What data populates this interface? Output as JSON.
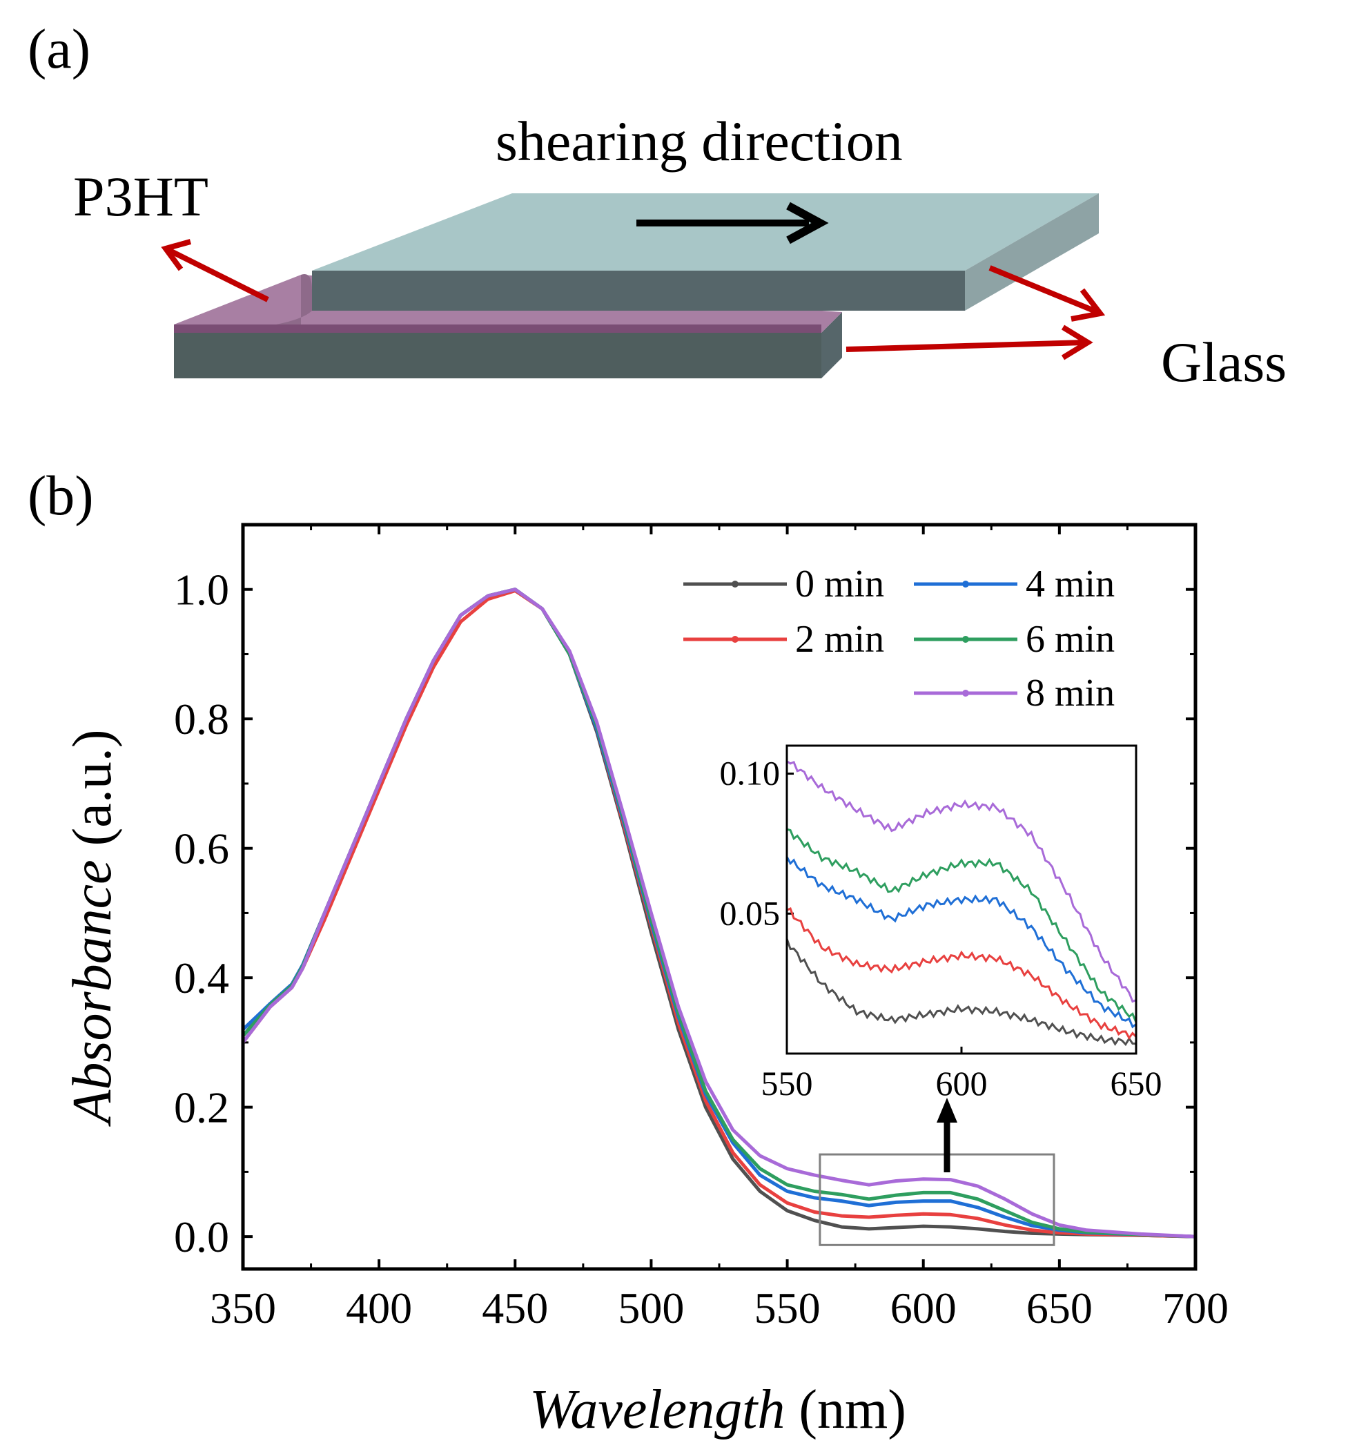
{
  "panel_a": {
    "label": "(a)",
    "direction_label": "shearing direction",
    "film_label": "P3HT",
    "substrate_label": "Glass",
    "colors": {
      "glass_top": "#a8c6c7",
      "glass_side": "#4f5e5e",
      "film": "#a87fa3",
      "arrow_red": "#c00000"
    }
  },
  "panel_b": {
    "label": "(b)"
  },
  "chart_data": {
    "type": "line",
    "xlabel_italic": "Wavelength",
    "xlabel_unit": " (nm)",
    "ylabel_italic": "Absorbance",
    "ylabel_unit": " (a.u.)",
    "xlim": [
      350,
      700
    ],
    "ylim": [
      -0.05,
      1.1
    ],
    "x_ticks": [
      "350",
      "400",
      "450",
      "500",
      "550",
      "600",
      "650",
      "700"
    ],
    "y_ticks": [
      "0.0",
      "0.2",
      "0.4",
      "0.6",
      "0.8",
      "1.0"
    ],
    "x": [
      350,
      360,
      368,
      372,
      380,
      390,
      400,
      410,
      420,
      430,
      440,
      450,
      460,
      470,
      480,
      490,
      500,
      510,
      520,
      530,
      540,
      550,
      560,
      570,
      580,
      590,
      600,
      610,
      620,
      630,
      640,
      650,
      660,
      680,
      700
    ],
    "series": [
      {
        "name": "0 min",
        "color": "#505050",
        "values": [
          0.31,
          0.36,
          0.39,
          0.42,
          0.5,
          0.6,
          0.7,
          0.8,
          0.89,
          0.96,
          0.99,
          1.0,
          0.97,
          0.9,
          0.78,
          0.63,
          0.47,
          0.32,
          0.2,
          0.12,
          0.07,
          0.04,
          0.025,
          0.015,
          0.012,
          0.014,
          0.016,
          0.015,
          0.012,
          0.008,
          0.005,
          0.004,
          0.003,
          0.002,
          0.0
        ]
      },
      {
        "name": "2 min",
        "color": "#e8403f",
        "values": [
          0.3,
          0.355,
          0.385,
          0.415,
          0.49,
          0.59,
          0.69,
          0.79,
          0.88,
          0.95,
          0.985,
          0.998,
          0.97,
          0.9,
          0.785,
          0.635,
          0.48,
          0.33,
          0.21,
          0.13,
          0.08,
          0.052,
          0.038,
          0.032,
          0.03,
          0.033,
          0.035,
          0.034,
          0.028,
          0.018,
          0.01,
          0.006,
          0.004,
          0.002,
          0.0
        ]
      },
      {
        "name": "4 min",
        "color": "#1f6fd6",
        "values": [
          0.32,
          0.36,
          0.39,
          0.42,
          0.5,
          0.6,
          0.7,
          0.8,
          0.89,
          0.96,
          0.99,
          1.0,
          0.97,
          0.9,
          0.785,
          0.64,
          0.485,
          0.34,
          0.22,
          0.145,
          0.095,
          0.07,
          0.06,
          0.055,
          0.048,
          0.053,
          0.055,
          0.055,
          0.045,
          0.03,
          0.017,
          0.01,
          0.006,
          0.003,
          0.0
        ]
      },
      {
        "name": "6 min",
        "color": "#2e9e5f",
        "values": [
          0.31,
          0.358,
          0.388,
          0.418,
          0.5,
          0.6,
          0.7,
          0.8,
          0.89,
          0.96,
          0.99,
          1.0,
          0.97,
          0.9,
          0.79,
          0.645,
          0.49,
          0.345,
          0.225,
          0.15,
          0.105,
          0.08,
          0.07,
          0.065,
          0.058,
          0.064,
          0.068,
          0.068,
          0.058,
          0.04,
          0.022,
          0.012,
          0.007,
          0.003,
          0.0
        ]
      },
      {
        "name": "8 min",
        "color": "#a86ad8",
        "values": [
          0.3,
          0.355,
          0.385,
          0.415,
          0.5,
          0.6,
          0.7,
          0.8,
          0.89,
          0.96,
          0.99,
          1.0,
          0.97,
          0.905,
          0.795,
          0.65,
          0.5,
          0.355,
          0.24,
          0.165,
          0.125,
          0.105,
          0.095,
          0.087,
          0.08,
          0.086,
          0.089,
          0.088,
          0.078,
          0.058,
          0.035,
          0.018,
          0.01,
          0.004,
          0.0
        ]
      }
    ],
    "inset": {
      "xlim": [
        550,
        650
      ],
      "ylim": [
        0.0,
        0.11
      ],
      "x_ticks": [
        "550",
        "600",
        "650"
      ],
      "y_ticks": [
        "0.05",
        "0.10"
      ],
      "source_window_xlim": [
        562,
        648
      ],
      "source_window_ylim": [
        -0.013,
        0.127
      ]
    }
  }
}
